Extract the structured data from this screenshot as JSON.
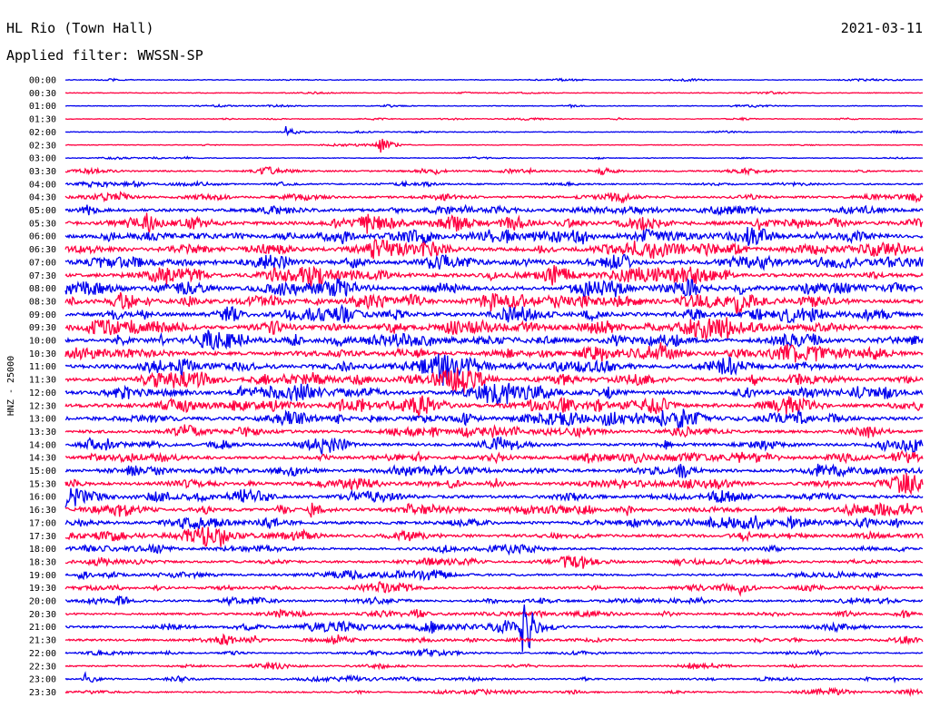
{
  "header": {
    "station": "HL Rio (Town Hall)",
    "date": "2021-03-11",
    "filter_label": "Applied filter: WWSSN-SP"
  },
  "chart_data": {
    "type": "line",
    "title": "HL Rio (Town Hall)",
    "ylabel": "HNZ - 25000",
    "xlabel": "",
    "grid": false,
    "legend": "none",
    "colors": [
      "#0000ee",
      "#ff0040"
    ],
    "rows": [
      "00:00",
      "00:30",
      "01:00",
      "01:30",
      "02:00",
      "02:30",
      "03:00",
      "03:30",
      "04:00",
      "04:30",
      "05:00",
      "05:30",
      "06:00",
      "06:30",
      "07:00",
      "07:30",
      "08:00",
      "08:30",
      "09:00",
      "09:30",
      "10:00",
      "10:30",
      "11:00",
      "11:30",
      "12:00",
      "12:30",
      "13:00",
      "13:30",
      "14:00",
      "14:30",
      "15:00",
      "15:30",
      "16:00",
      "16:30",
      "17:00",
      "17:30",
      "18:00",
      "18:30",
      "19:00",
      "19:30",
      "20:00",
      "20:30",
      "21:00",
      "21:30",
      "22:00",
      "22:30",
      "23:00",
      "23:30"
    ],
    "noise_level": [
      1,
      1,
      1,
      1,
      1,
      1,
      1,
      2,
      2,
      3,
      4,
      5,
      5,
      5,
      5,
      5,
      5,
      5,
      5,
      5,
      5,
      5,
      5,
      5,
      5,
      5,
      5,
      4,
      4,
      4,
      4,
      4,
      4,
      4,
      4,
      4,
      3,
      3,
      3,
      3,
      3,
      3,
      3,
      3,
      2,
      2,
      2,
      2
    ],
    "events": [
      {
        "row": "08:00",
        "minute": 23.5,
        "amplitude": 8
      },
      {
        "row": "08:30",
        "minute": 23.5,
        "amplitude": 16
      },
      {
        "row": "15:00",
        "minute": 21.5,
        "amplitude": 9
      },
      {
        "row": "16:30",
        "minute": 8.6,
        "amplitude": 8
      },
      {
        "row": "17:00",
        "minute": 25.3,
        "amplitude": 7
      },
      {
        "row": "19:30",
        "minute": 23.6,
        "amplitude": 6
      },
      {
        "row": "21:00",
        "minute": 16.0,
        "amplitude": 40
      },
      {
        "row": "02:00",
        "minute": 7.7,
        "amplitude": 6
      },
      {
        "row": "02:30",
        "minute": 11.0,
        "amplitude": 8
      },
      {
        "row": "03:30",
        "minute": 18.7,
        "amplitude": 5
      },
      {
        "row": "09:30",
        "minute": 20.3,
        "amplitude": 5
      },
      {
        "row": "10:00",
        "minute": 1.8,
        "amplitude": 6
      },
      {
        "row": "12:00",
        "minute": 6.0,
        "amplitude": 6
      },
      {
        "row": "19:00",
        "minute": 0.5,
        "amplitude": 5
      },
      {
        "row": "20:00",
        "minute": 1.8,
        "amplitude": 5
      },
      {
        "row": "23:00",
        "minute": 0.7,
        "amplitude": 6
      }
    ]
  }
}
